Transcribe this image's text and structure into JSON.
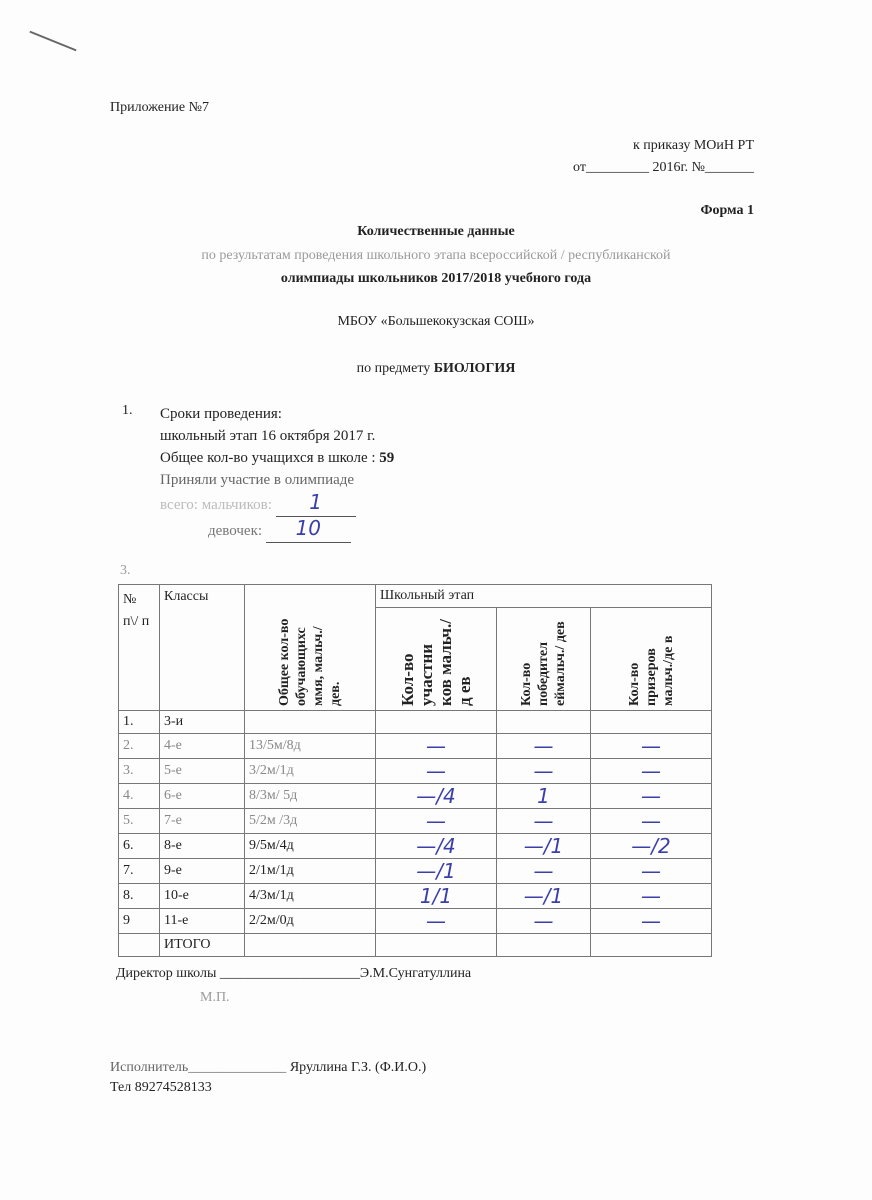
{
  "appendix": "Приложение №7",
  "order_ref": "к приказу МОиН РТ",
  "order_date": "от_________ 2016г.   №_______",
  "form": "Форма 1",
  "title1": "Количественные данные",
  "title2": "по результатам проведения школьного этапа  всероссийской / республиканской",
  "title3": "олимпиады школьников 2017/2018 учебного года",
  "school": "МБОУ «Большекокузская СОШ»",
  "subject_prefix": "по предмету ",
  "subject": "БИОЛОГИЯ",
  "section1": {
    "num": "1.",
    "label": "Сроки проведения:",
    "date_line": "школьный этап 16 октября 2017 г.",
    "total_label": "Общее  кол-во учащихся в школе : ",
    "total": "59",
    "participated": "Приняли участие в олимпиаде",
    "boys_label": "всего: мальчиков:",
    "boys": "1",
    "girls_label": "девочек:",
    "girls": "10"
  },
  "section3_num": "3.",
  "table": {
    "headers": {
      "num": "№ п\\/ п",
      "classes": "Классы",
      "total": "Общее кол-во обучающихс ммя, мальч./дев.",
      "stage": "Школьный этап",
      "participants": "Кол-во участни ков мальч./д ев",
      "winners": "Кол-во победител еймальч./ дев",
      "prizes": "Кол-во призеров мальч./де в"
    },
    "rows": [
      {
        "n": "1.",
        "cls": "3-и",
        "total": "",
        "part": "",
        "win": "",
        "prize": ""
      },
      {
        "n": "2.",
        "cls": "4-е",
        "total": "13/5м/8д",
        "part": "—",
        "win": "—",
        "prize": "—"
      },
      {
        "n": "3.",
        "cls": "5-е",
        "total": "3/2м/1д",
        "part": "—",
        "win": "—",
        "prize": "—"
      },
      {
        "n": "4.",
        "cls": "6-е",
        "total": "8/3м/ 5д",
        "part": "—/4",
        "win": "1",
        "prize": "—"
      },
      {
        "n": "5.",
        "cls": "7-е",
        "total": "5/2м /3д",
        "part": "—",
        "win": "—",
        "prize": "—"
      },
      {
        "n": "6.",
        "cls": "8-е",
        "total": "9/5м/4д",
        "part": "—/4",
        "win": "—/1",
        "prize": "—/2"
      },
      {
        "n": "7.",
        "cls": "9-е",
        "total": "2/1м/1д",
        "part": "—/1",
        "win": "—",
        "prize": "—"
      },
      {
        "n": "8.",
        "cls": "10-е",
        "total": "4/3м/1д",
        "part": "1/1",
        "win": "—/1",
        "prize": "—"
      },
      {
        "n": "9",
        "cls": "11-е",
        "total": "2/2м/0д",
        "part": "—",
        "win": "—",
        "prize": "—"
      },
      {
        "n": "",
        "cls": "ИТОГО",
        "total": "",
        "part": "",
        "win": "",
        "prize": ""
      }
    ]
  },
  "director_label": "Директор школы ",
  "director_line": "____________________",
  "director": "Э.М.Сунгатуллина",
  "stamp": "М.П.",
  "executor_label": "Исполнитель______________ ",
  "executor": "Яруллина Г.З. (Ф.И.О.)",
  "phone": "Тел 89274528133",
  "ink_color": "#3b3fa8"
}
